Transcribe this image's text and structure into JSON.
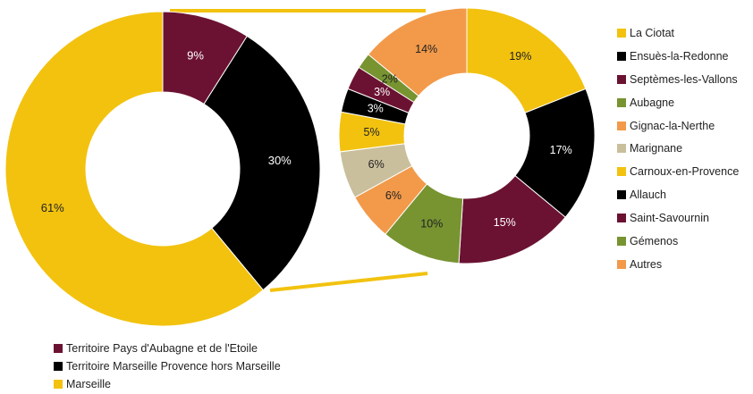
{
  "colors": {
    "yellow": "#F2C20F",
    "black": "#000000",
    "maroon": "#6B1232",
    "green": "#779431",
    "orange": "#F29A4A",
    "beige": "#C9BF9C",
    "connector": "#F2C20F"
  },
  "chart_data": [
    {
      "type": "pie",
      "series": [
        {
          "name": "Territoire Pays d'Aubagne et de l'Etoile",
          "value": 9,
          "label": "9%",
          "color": "#6B1232"
        },
        {
          "name": "Territoire Marseille Provence hors Marseille",
          "value": 30,
          "label": "30%",
          "color": "#000000"
        },
        {
          "name": "Marseille",
          "value": 61,
          "label": "61%",
          "color": "#F2C20F"
        }
      ],
      "legend_position": "bottom-left"
    },
    {
      "type": "pie",
      "series": [
        {
          "name": "La Ciotat",
          "value": 19,
          "label": "19%",
          "color": "#F2C20F"
        },
        {
          "name": "Ensuès-la-Redonne",
          "value": 17,
          "label": "17%",
          "color": "#000000"
        },
        {
          "name": "Septèmes-les-Vallons",
          "value": 15,
          "label": "15%",
          "color": "#6B1232"
        },
        {
          "name": "Aubagne",
          "value": 10,
          "label": "10%",
          "color": "#779431"
        },
        {
          "name": "Gignac-la-Nerthe",
          "value": 6,
          "label": "6%",
          "color": "#F29A4A"
        },
        {
          "name": "Marignane",
          "value": 6,
          "label": "6%",
          "color": "#C9BF9C"
        },
        {
          "name": "Carnoux-en-Provence",
          "value": 5,
          "label": "5%",
          "color": "#F2C20F"
        },
        {
          "name": "Allauch",
          "value": 3,
          "label": "3%",
          "color": "#000000"
        },
        {
          "name": "Saint-Savournin",
          "value": 3,
          "label": "3%",
          "color": "#6B1232"
        },
        {
          "name": "Gémenos",
          "value": 2,
          "label": "2%",
          "color": "#779431"
        },
        {
          "name": "Autres",
          "value": 14,
          "label": "14%",
          "color": "#F29A4A"
        }
      ],
      "legend_position": "right"
    }
  ]
}
